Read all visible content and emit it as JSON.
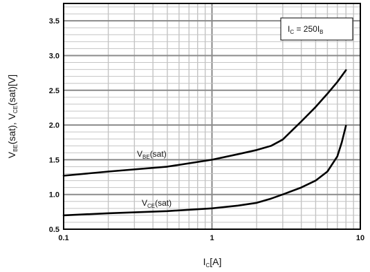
{
  "chart_data": {
    "type": "line",
    "xscale": "log",
    "xlim": [
      0.1,
      10
    ],
    "ylim": [
      0.5,
      3.75
    ],
    "grid": true,
    "xticks": [
      "0.1",
      "1",
      "10"
    ],
    "yticks": [
      "0.5",
      "1.0",
      "1.5",
      "2.0",
      "2.5",
      "3.0",
      "3.5"
    ],
    "xlabel": {
      "main": "I",
      "sub": "C",
      "rest": "[A]"
    },
    "ylabel": {
      "p1": "V",
      "s1": "BE",
      "p2": "(sat),  V",
      "s2": "CE",
      "p3": "(sat)[V]"
    },
    "condition": {
      "p1": "I",
      "s1": "C",
      "p2": " = 250I",
      "s2": "B"
    },
    "series": [
      {
        "label_main": "V",
        "label_sub": "BE",
        "label_rest": "(sat)",
        "x": [
          0.1,
          0.2,
          0.5,
          1,
          1.5,
          2,
          2.5,
          3,
          3.5,
          4,
          5,
          6,
          7,
          8
        ],
        "y": [
          1.27,
          1.33,
          1.4,
          1.5,
          1.58,
          1.64,
          1.7,
          1.79,
          1.93,
          2.05,
          2.26,
          2.45,
          2.62,
          2.79
        ]
      },
      {
        "label_main": "V",
        "label_sub": "CE",
        "label_rest": "(sat)",
        "x": [
          0.1,
          0.2,
          0.5,
          1,
          1.5,
          2,
          2.5,
          3,
          4,
          5,
          6,
          7,
          7.5,
          8
        ],
        "y": [
          0.7,
          0.73,
          0.76,
          0.8,
          0.84,
          0.88,
          0.94,
          1.0,
          1.1,
          1.2,
          1.33,
          1.55,
          1.75,
          1.99
        ]
      }
    ]
  }
}
